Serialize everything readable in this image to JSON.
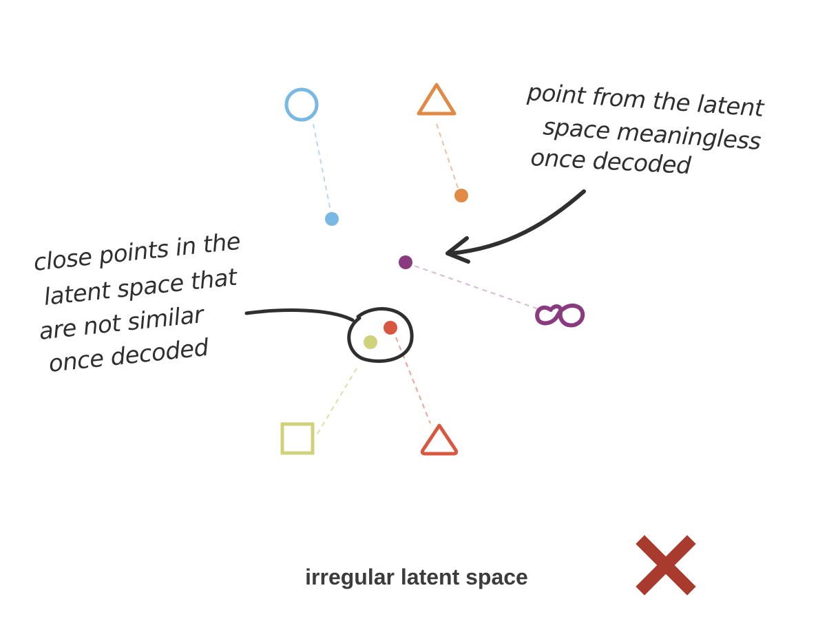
{
  "annotations": {
    "meaningless_point": [
      "point from the latent",
      "space meaningless",
      "once decoded"
    ],
    "close_points": [
      "close points in the",
      "latent space that",
      "are not similar",
      "once decoded"
    ]
  },
  "caption": "irregular latent space",
  "verdict_icon": "cross-icon",
  "colors": {
    "blue": "#7ab8e4",
    "orange": "#e08a45",
    "purple": "#8a3a7f",
    "yellow_green": "#cfd27a",
    "red": "#d9573f",
    "ink": "#2f2f2f",
    "cross": "#a83a2e"
  }
}
